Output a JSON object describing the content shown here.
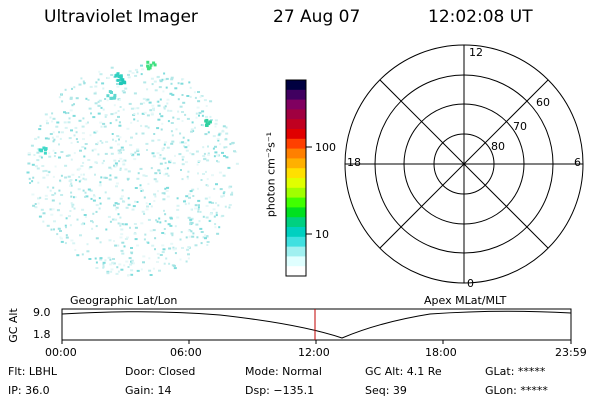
{
  "header": {
    "instrument": "Ultraviolet Imager",
    "date": "27 Aug 07",
    "time": "12:02:08 UT"
  },
  "colorbar": {
    "unit_label": "photon cm⁻²s⁻¹",
    "ticks": [
      "100",
      "10"
    ],
    "colors": [
      "#000040",
      "#400060",
      "#800060",
      "#a00040",
      "#c00020",
      "#e00000",
      "#ff4000",
      "#ff8000",
      "#ffb000",
      "#ffe000",
      "#e0ff00",
      "#a0ff00",
      "#40ff00",
      "#00e020",
      "#00d080",
      "#00d0c0",
      "#40e0e0",
      "#a0f0f0",
      "#e0ffff",
      "#ffffff"
    ]
  },
  "polar_plot": {
    "mlt_labels": {
      "top": "12",
      "left": "18",
      "right": "6",
      "bottom": "0"
    },
    "lat_labels": [
      "60",
      "70",
      "80"
    ]
  },
  "timeline": {
    "left_label": "Geographic Lat/Lon",
    "right_label": "Apex MLat/MLT",
    "y_axis_label": "GC Alt",
    "y_ticks": [
      "9.0",
      "1.8"
    ],
    "x_ticks": [
      "00:00",
      "06:00",
      "12:00",
      "18:00",
      "23:59"
    ],
    "marker_time": "12:02",
    "marker_color": "#c00000"
  },
  "footer": {
    "rows": [
      [
        "Flt: LBHL",
        "Door: Closed",
        "Mode: Normal",
        "GC Alt: 4.1 Re",
        "GLat: *****"
      ],
      [
        "IP: 36.0",
        "Gain: 14",
        "Dsp: −135.1",
        "Seq: 39",
        "GLon: *****"
      ]
    ]
  }
}
